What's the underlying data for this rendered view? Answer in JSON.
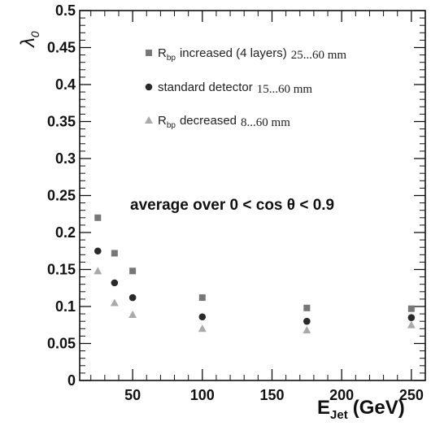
{
  "chart_data": {
    "type": "scatter",
    "xlabel": "E",
    "xlabel_sub": "Jet",
    "xlabel_unit": "(GeV)",
    "ylabel": "λ",
    "ylabel_sub": "0",
    "xlim": [
      12,
      260
    ],
    "ylim": [
      0,
      0.5
    ],
    "xticks": [
      50,
      100,
      150,
      200,
      250
    ],
    "xtick_labels": [
      "50",
      "100",
      "150",
      "200",
      "250"
    ],
    "yticks": [
      0,
      0.05,
      0.1,
      0.15,
      0.2,
      0.25,
      0.3,
      0.35,
      0.4,
      0.45,
      0.5
    ],
    "ytick_labels": [
      "0",
      "0.05",
      "0.1",
      "0.15",
      "0.2",
      "0.25",
      "0.3",
      "0.35",
      "0.4",
      "0.45",
      "0.5"
    ],
    "grid": false,
    "legend_position": "top-right",
    "annotation": "average over 0 < cos θ < 0.9",
    "series": [
      {
        "legend_main": "R",
        "legend_sub": "bp",
        "legend_rest": "increased (4 layers)",
        "legend_range": "25...60 mm",
        "marker": "square",
        "color": "#777777",
        "x": [
          25,
          37,
          50,
          100,
          175,
          250
        ],
        "y": [
          0.22,
          0.172,
          0.148,
          0.112,
          0.098,
          0.097
        ]
      },
      {
        "legend_main": "standard detector",
        "legend_sub": "",
        "legend_rest": "",
        "legend_range": "15...60 mm",
        "marker": "circle",
        "color": "#2a2a2a",
        "x": [
          25,
          37,
          50,
          100,
          175,
          250
        ],
        "y": [
          0.175,
          0.132,
          0.112,
          0.086,
          0.08,
          0.085
        ]
      },
      {
        "legend_main": "R",
        "legend_sub": "bp",
        "legend_rest": "decreased",
        "legend_range": "8...60 mm",
        "marker": "triangle",
        "color": "#aaaaaa",
        "x": [
          25,
          37,
          50,
          100,
          175,
          250
        ],
        "y": [
          0.148,
          0.105,
          0.089,
          0.07,
          0.068,
          0.075
        ]
      }
    ]
  }
}
